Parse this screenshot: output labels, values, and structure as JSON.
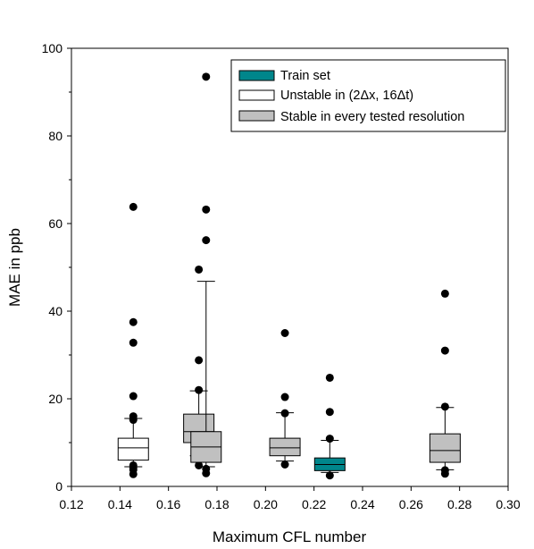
{
  "chart_data": {
    "type": "box",
    "xlabel": "Maximum CFL number",
    "ylabel": "MAE in ppb",
    "xlim": [
      0.12,
      0.3
    ],
    "ylim": [
      0,
      100
    ],
    "x_ticks": [
      "0.12",
      "0.14",
      "0.16",
      "0.18",
      "0.20",
      "0.22",
      "0.24",
      "0.26",
      "0.28",
      "0.30"
    ],
    "y_ticks": [
      "0",
      "20",
      "40",
      "60",
      "80",
      "100"
    ],
    "grid": false,
    "legend_position": "top-right",
    "legend": [
      {
        "label": "Train set",
        "color": "#00868B"
      },
      {
        "label": "Unstable in (2Δx, 16Δt)",
        "color": "#ffffff"
      },
      {
        "label": "Stable in every tested resolution",
        "color": "#c0c0c0"
      }
    ],
    "boxes": [
      {
        "x": 0.1455,
        "group": "Unstable in (2Δx, 16Δt)",
        "whisker_low": 4.5,
        "q1": 6.0,
        "median": 8.8,
        "q3": 11.0,
        "whisker_high": 15.5,
        "outliers": [
          63.8,
          37.5,
          32.8,
          20.6,
          16.0,
          15.2,
          4.8,
          4.2,
          3.8,
          2.8
        ]
      },
      {
        "x": 0.1725,
        "group": "Stable in every tested resolution",
        "whisker_low": 7.0,
        "q1": 10.0,
        "median": 12.5,
        "q3": 16.5,
        "whisker_high": 21.8,
        "outliers": [
          49.5,
          28.8,
          22.0,
          4.8
        ]
      },
      {
        "x": 0.1755,
        "group": "Stable in every tested resolution",
        "whisker_low": 4.5,
        "q1": 5.5,
        "median": 9.0,
        "q3": 12.5,
        "whisker_high": 46.8,
        "outliers": [
          93.5,
          63.2,
          56.2,
          4.0,
          3.0
        ]
      },
      {
        "x": 0.208,
        "group": "Stable in every tested resolution",
        "whisker_low": 5.8,
        "q1": 7.0,
        "median": 8.8,
        "q3": 11.0,
        "whisker_high": 16.8,
        "outliers": [
          35.0,
          20.4,
          16.7,
          5.0
        ]
      },
      {
        "x": 0.2265,
        "group": "Train set",
        "whisker_low": 3.2,
        "q1": 3.6,
        "median": 5.0,
        "q3": 6.5,
        "whisker_high": 10.5,
        "outliers": [
          24.8,
          17.0,
          10.9,
          2.5
        ]
      },
      {
        "x": 0.274,
        "group": "Stable in every tested resolution",
        "whisker_low": 3.8,
        "q1": 5.5,
        "median": 8.2,
        "q3": 12.0,
        "whisker_high": 18.0,
        "outliers": [
          44.0,
          31.0,
          18.2,
          3.7,
          2.9
        ]
      }
    ]
  }
}
